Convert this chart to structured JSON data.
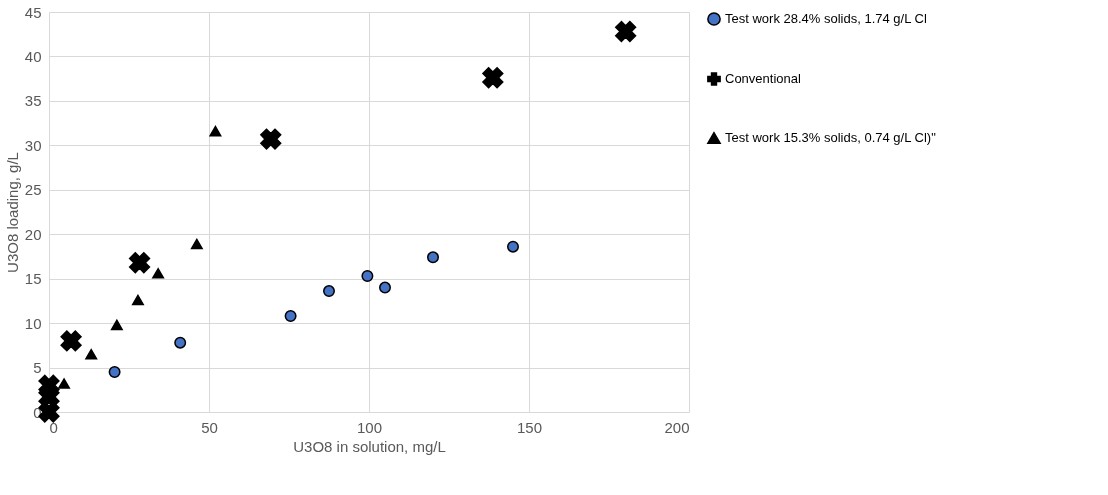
{
  "chart_data": {
    "type": "scatter",
    "xlabel": "U3O8 in solution, mg/L",
    "ylabel": "U3O8 loading, g/L",
    "xlim": [
      0,
      200
    ],
    "ylim": [
      0,
      45
    ],
    "xticks": [
      0,
      50,
      100,
      150,
      200
    ],
    "yticks": [
      0,
      5,
      10,
      15,
      20,
      25,
      30,
      35,
      40,
      45
    ],
    "grid": true,
    "legend": "right",
    "series": [
      {
        "name": "Test work 28.4% solids, 1.74 g/L Cl",
        "color": "#4472c4",
        "marker": "circle",
        "x": [
          20.5,
          41,
          75.5,
          87.5,
          99.5,
          105,
          120,
          145
        ],
        "values": [
          4.5,
          7.8,
          10.8,
          13.6,
          15.3,
          14,
          17.4,
          18.6
        ]
      },
      {
        "name": "Conventional",
        "color": "#000000",
        "marker": "cross",
        "x": [
          0,
          0,
          0,
          6.9,
          28.3,
          69.3,
          138.7,
          180.2
        ],
        "values": [
          0,
          1.7,
          3,
          8,
          16.8,
          30.7,
          37.6,
          42.8
        ]
      },
      {
        "name": "Test work 15.3% solids, 0.74 g/L Cl)\"",
        "color": "#000000",
        "marker": "triangle",
        "x": [
          4.7,
          13.2,
          21.2,
          27.8,
          34.1,
          46.2,
          52
        ],
        "values": [
          3.2,
          6.5,
          9.8,
          12.6,
          15.6,
          18.9,
          31.6
        ]
      }
    ]
  }
}
